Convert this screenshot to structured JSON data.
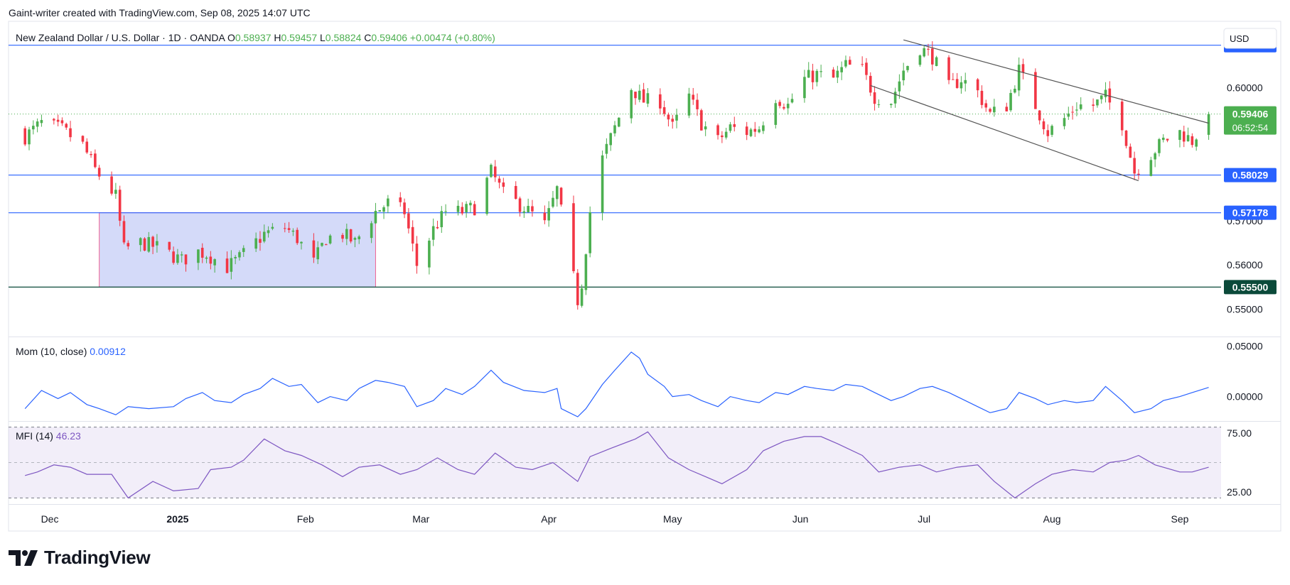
{
  "header": {
    "text": "Gaint-writer created with TradingView.com, Sep 08, 2025 14:07 UTC"
  },
  "brand": {
    "name": "TradingView"
  },
  "colors": {
    "up": "#26a69a",
    "upFill": "#4caf50",
    "down": "#f23645",
    "level": "#2962ff",
    "channel": "#555555",
    "mom": "#2962ff",
    "mfi": "#7e57c2",
    "box": "#c5cef7"
  },
  "chart_data": [
    {
      "type": "candlestick",
      "legend": {
        "symbol": "New Zealand Dollar / U.S. Dollar · 1D · OANDA",
        "o_label": "O",
        "o": "0.58937",
        "h_label": "H",
        "h": "0.59457",
        "l_label": "L",
        "l": "0.58824",
        "c_label": "C",
        "c": "0.59406",
        "change": "+0.00474 (+0.80%)"
      },
      "currency": "USD",
      "ylim": [
        0.544,
        0.615
      ],
      "y_ticks": [
        "0.60000",
        "0.57000",
        "0.56000",
        "0.55000"
      ],
      "x_ticks": [
        {
          "label": "Dec",
          "date": "2024-12-01"
        },
        {
          "label": "2025",
          "date": "2025-01-01"
        },
        {
          "label": "Feb",
          "date": "2025-02-01"
        },
        {
          "label": "Mar",
          "date": "2025-03-01"
        },
        {
          "label": "Apr",
          "date": "2025-04-01"
        },
        {
          "label": "May",
          "date": "2025-05-01"
        },
        {
          "label": "Jun",
          "date": "2025-06-01"
        },
        {
          "label": "Jul",
          "date": "2025-07-01"
        },
        {
          "label": "Aug",
          "date": "2025-08-01"
        },
        {
          "label": "Sep",
          "date": "2025-09-01"
        }
      ],
      "levels": [
        {
          "value": 0.6096,
          "label": "0.60960",
          "color": "#2962ff"
        },
        {
          "value": 0.58029,
          "label": "0.58029",
          "color": "#2962ff"
        },
        {
          "value": 0.57178,
          "label": "0.57178",
          "color": "#2962ff"
        },
        {
          "value": 0.555,
          "label": "0.55500",
          "color": "#0b4a3a"
        }
      ],
      "last_price": {
        "value": 0.59406,
        "label": "0.59406",
        "countdown": "06:52:54"
      },
      "range_box": {
        "start": "2024-12-13",
        "end": "2025-02-18",
        "low": 0.555,
        "high": 0.5718
      },
      "channel": {
        "upper": [
          {
            "date": "2025-06-26",
            "value": 0.6108
          },
          {
            "date": "2025-09-08",
            "value": 0.592
          }
        ],
        "lower": [
          {
            "date": "2025-06-18",
            "value": 0.6005
          },
          {
            "date": "2025-08-22",
            "value": 0.579
          }
        ]
      },
      "anchors": [
        [
          "2024-11-25",
          0.589
        ],
        [
          "2024-11-29",
          0.592
        ],
        [
          "2024-12-04",
          0.5905
        ],
        [
          "2024-12-09",
          0.587
        ],
        [
          "2024-12-12",
          0.5815
        ],
        [
          "2024-12-17",
          0.5755
        ],
        [
          "2024-12-19",
          0.5635
        ],
        [
          "2024-12-23",
          0.565
        ],
        [
          "2024-12-27",
          0.564
        ],
        [
          "2025-01-02",
          0.561
        ],
        [
          "2025-01-06",
          0.563
        ],
        [
          "2025-01-08",
          0.5625
        ],
        [
          "2025-01-13",
          0.5595
        ],
        [
          "2025-01-16",
          0.5615
        ],
        [
          "2025-01-22",
          0.567
        ],
        [
          "2025-01-27",
          0.5685
        ],
        [
          "2025-01-30",
          0.566
        ],
        [
          "2025-02-03",
          0.5605
        ],
        [
          "2025-02-06",
          0.566
        ],
        [
          "2025-02-10",
          0.567
        ],
        [
          "2025-02-13",
          0.565
        ],
        [
          "2025-02-18",
          0.572
        ],
        [
          "2025-02-21",
          0.574
        ],
        [
          "2025-02-25",
          0.572
        ],
        [
          "2025-02-28",
          0.56
        ],
        [
          "2025-03-04",
          0.568
        ],
        [
          "2025-03-07",
          0.572
        ],
        [
          "2025-03-11",
          0.572
        ],
        [
          "2025-03-14",
          0.573
        ],
        [
          "2025-03-18",
          0.581
        ],
        [
          "2025-03-21",
          0.576
        ],
        [
          "2025-03-26",
          0.573
        ],
        [
          "2025-03-31",
          0.569
        ],
        [
          "2025-04-03",
          0.577
        ],
        [
          "2025-04-08",
          0.552
        ],
        [
          "2025-04-09",
          0.556
        ],
        [
          "2025-04-11",
          0.572
        ],
        [
          "2025-04-14",
          0.584
        ],
        [
          "2025-04-17",
          0.591
        ],
        [
          "2025-04-21",
          0.6
        ],
        [
          "2025-04-24",
          0.597
        ],
        [
          "2025-04-28",
          0.597
        ],
        [
          "2025-05-01",
          0.591
        ],
        [
          "2025-05-05",
          0.598
        ],
        [
          "2025-05-08",
          0.592
        ],
        [
          "2025-05-12",
          0.588
        ],
        [
          "2025-05-15",
          0.591
        ],
        [
          "2025-05-19",
          0.59
        ],
        [
          "2025-05-22",
          0.591
        ],
        [
          "2025-05-26",
          0.598
        ],
        [
          "2025-05-29",
          0.596
        ],
        [
          "2025-06-02",
          0.602
        ],
        [
          "2025-06-05",
          0.603
        ],
        [
          "2025-06-09",
          0.602
        ],
        [
          "2025-06-12",
          0.605
        ],
        [
          "2025-06-16",
          0.604
        ],
        [
          "2025-06-19",
          0.598
        ],
        [
          "2025-06-23",
          0.597
        ],
        [
          "2025-06-26",
          0.604
        ],
        [
          "2025-06-30",
          0.609
        ],
        [
          "2025-07-03",
          0.607
        ],
        [
          "2025-07-07",
          0.6
        ],
        [
          "2025-07-10",
          0.602
        ],
        [
          "2025-07-14",
          0.599
        ],
        [
          "2025-07-17",
          0.594
        ],
        [
          "2025-07-21",
          0.596
        ],
        [
          "2025-07-24",
          0.604
        ],
        [
          "2025-07-28",
          0.596
        ],
        [
          "2025-07-31",
          0.59
        ],
        [
          "2025-08-04",
          0.593
        ],
        [
          "2025-08-07",
          0.596
        ],
        [
          "2025-08-11",
          0.596
        ],
        [
          "2025-08-14",
          0.598
        ],
        [
          "2025-08-18",
          0.592
        ],
        [
          "2025-08-21",
          0.581
        ],
        [
          "2025-08-25",
          0.585
        ],
        [
          "2025-08-28",
          0.588
        ],
        [
          "2025-09-01",
          0.59
        ],
        [
          "2025-09-04",
          0.588
        ],
        [
          "2025-09-05",
          0.5894
        ],
        [
          "2025-09-08",
          0.5941
        ]
      ]
    },
    {
      "type": "line",
      "name": "Mom (10, close)",
      "value_label": "0.00912",
      "ylim": [
        -0.0235,
        0.058
      ],
      "y_ticks": [
        "0.05000",
        "0.00000"
      ],
      "points": [
        [
          "2024-11-25",
          -0.012
        ],
        [
          "2024-11-29",
          0.006
        ],
        [
          "2024-12-03",
          -0.002
        ],
        [
          "2024-12-06",
          0.004
        ],
        [
          "2024-12-10",
          -0.008
        ],
        [
          "2024-12-13",
          -0.012
        ],
        [
          "2024-12-17",
          -0.018
        ],
        [
          "2024-12-20",
          -0.01
        ],
        [
          "2024-12-25",
          -0.012
        ],
        [
          "2024-12-31",
          -0.01
        ],
        [
          "2025-01-03",
          -0.002
        ],
        [
          "2025-01-07",
          0.004
        ],
        [
          "2025-01-10",
          -0.004
        ],
        [
          "2025-01-14",
          -0.006
        ],
        [
          "2025-01-17",
          0.002
        ],
        [
          "2025-01-21",
          0.008
        ],
        [
          "2025-01-24",
          0.018
        ],
        [
          "2025-01-28",
          0.01
        ],
        [
          "2025-01-31",
          0.012
        ],
        [
          "2025-02-04",
          -0.006
        ],
        [
          "2025-02-07",
          0.0
        ],
        [
          "2025-02-11",
          -0.004
        ],
        [
          "2025-02-14",
          0.008
        ],
        [
          "2025-02-18",
          0.016
        ],
        [
          "2025-02-21",
          0.014
        ],
        [
          "2025-02-25",
          0.01
        ],
        [
          "2025-02-28",
          -0.01
        ],
        [
          "2025-03-04",
          -0.004
        ],
        [
          "2025-03-07",
          0.008
        ],
        [
          "2025-03-11",
          0.002
        ],
        [
          "2025-03-14",
          0.01
        ],
        [
          "2025-03-18",
          0.026
        ],
        [
          "2025-03-21",
          0.014
        ],
        [
          "2025-03-26",
          0.006
        ],
        [
          "2025-03-31",
          0.004
        ],
        [
          "2025-04-03",
          0.008
        ],
        [
          "2025-04-04",
          -0.012
        ],
        [
          "2025-04-08",
          -0.02
        ],
        [
          "2025-04-10",
          -0.012
        ],
        [
          "2025-04-14",
          0.012
        ],
        [
          "2025-04-17",
          0.026
        ],
        [
          "2025-04-21",
          0.044
        ],
        [
          "2025-04-23",
          0.038
        ],
        [
          "2025-04-25",
          0.022
        ],
        [
          "2025-04-29",
          0.01
        ],
        [
          "2025-05-01",
          0.0
        ],
        [
          "2025-05-05",
          0.002
        ],
        [
          "2025-05-08",
          -0.004
        ],
        [
          "2025-05-12",
          -0.01
        ],
        [
          "2025-05-15",
          0.0
        ],
        [
          "2025-05-19",
          -0.004
        ],
        [
          "2025-05-22",
          -0.006
        ],
        [
          "2025-05-26",
          0.004
        ],
        [
          "2025-05-29",
          0.002
        ],
        [
          "2025-06-02",
          0.01
        ],
        [
          "2025-06-05",
          0.008
        ],
        [
          "2025-06-09",
          0.006
        ],
        [
          "2025-06-12",
          0.012
        ],
        [
          "2025-06-16",
          0.01
        ],
        [
          "2025-06-19",
          0.004
        ],
        [
          "2025-06-23",
          -0.004
        ],
        [
          "2025-06-26",
          0.0
        ],
        [
          "2025-06-30",
          0.008
        ],
        [
          "2025-07-03",
          0.01
        ],
        [
          "2025-07-07",
          0.004
        ],
        [
          "2025-07-10",
          -0.002
        ],
        [
          "2025-07-14",
          -0.01
        ],
        [
          "2025-07-17",
          -0.016
        ],
        [
          "2025-07-21",
          -0.012
        ],
        [
          "2025-07-24",
          0.004
        ],
        [
          "2025-07-28",
          -0.002
        ],
        [
          "2025-07-31",
          -0.008
        ],
        [
          "2025-08-04",
          -0.004
        ],
        [
          "2025-08-07",
          -0.006
        ],
        [
          "2025-08-11",
          -0.004
        ],
        [
          "2025-08-14",
          0.01
        ],
        [
          "2025-08-18",
          -0.004
        ],
        [
          "2025-08-21",
          -0.016
        ],
        [
          "2025-08-25",
          -0.012
        ],
        [
          "2025-08-28",
          -0.004
        ],
        [
          "2025-09-01",
          0.0
        ],
        [
          "2025-09-04",
          0.004
        ],
        [
          "2025-09-08",
          0.009
        ]
      ]
    },
    {
      "type": "line",
      "name": "MFI (14)",
      "value_label": "46.23",
      "ylim": [
        16.0,
        84.0
      ],
      "y_ticks": [
        "75.00",
        "25.00"
      ],
      "bands": [
        80,
        20
      ],
      "points": [
        [
          "2024-11-25",
          39
        ],
        [
          "2024-11-28",
          42
        ],
        [
          "2024-12-02",
          48
        ],
        [
          "2024-12-06",
          46
        ],
        [
          "2024-12-10",
          40
        ],
        [
          "2024-12-16",
          40
        ],
        [
          "2024-12-20",
          20
        ],
        [
          "2024-12-26",
          34
        ],
        [
          "2024-12-31",
          26
        ],
        [
          "2025-01-06",
          28
        ],
        [
          "2025-01-09",
          44
        ],
        [
          "2025-01-14",
          46
        ],
        [
          "2025-01-17",
          52
        ],
        [
          "2025-01-22",
          70
        ],
        [
          "2025-01-27",
          60
        ],
        [
          "2025-01-31",
          56
        ],
        [
          "2025-02-05",
          48
        ],
        [
          "2025-02-10",
          38
        ],
        [
          "2025-02-14",
          46
        ],
        [
          "2025-02-19",
          48
        ],
        [
          "2025-02-24",
          40
        ],
        [
          "2025-02-28",
          44
        ],
        [
          "2025-03-05",
          54
        ],
        [
          "2025-03-10",
          44
        ],
        [
          "2025-03-14",
          40
        ],
        [
          "2025-03-19",
          58
        ],
        [
          "2025-03-24",
          46
        ],
        [
          "2025-03-28",
          44
        ],
        [
          "2025-04-02",
          50
        ],
        [
          "2025-04-08",
          34
        ],
        [
          "2025-04-11",
          55
        ],
        [
          "2025-04-16",
          62
        ],
        [
          "2025-04-22",
          70
        ],
        [
          "2025-04-25",
          76
        ],
        [
          "2025-04-30",
          54
        ],
        [
          "2025-05-05",
          44
        ],
        [
          "2025-05-09",
          38
        ],
        [
          "2025-05-13",
          32
        ],
        [
          "2025-05-19",
          44
        ],
        [
          "2025-05-23",
          60
        ],
        [
          "2025-05-28",
          68
        ],
        [
          "2025-06-02",
          72
        ],
        [
          "2025-06-06",
          72
        ],
        [
          "2025-06-10",
          66
        ],
        [
          "2025-06-16",
          56
        ],
        [
          "2025-06-20",
          42
        ],
        [
          "2025-06-25",
          46
        ],
        [
          "2025-06-30",
          48
        ],
        [
          "2025-07-04",
          42
        ],
        [
          "2025-07-09",
          46
        ],
        [
          "2025-07-14",
          48
        ],
        [
          "2025-07-18",
          34
        ],
        [
          "2025-07-23",
          20
        ],
        [
          "2025-07-28",
          32
        ],
        [
          "2025-08-01",
          40
        ],
        [
          "2025-08-06",
          44
        ],
        [
          "2025-08-11",
          42
        ],
        [
          "2025-08-15",
          50
        ],
        [
          "2025-08-19",
          52
        ],
        [
          "2025-08-22",
          56
        ],
        [
          "2025-08-26",
          48
        ],
        [
          "2025-09-01",
          42
        ],
        [
          "2025-09-04",
          42
        ],
        [
          "2025-09-08",
          46
        ]
      ]
    }
  ]
}
